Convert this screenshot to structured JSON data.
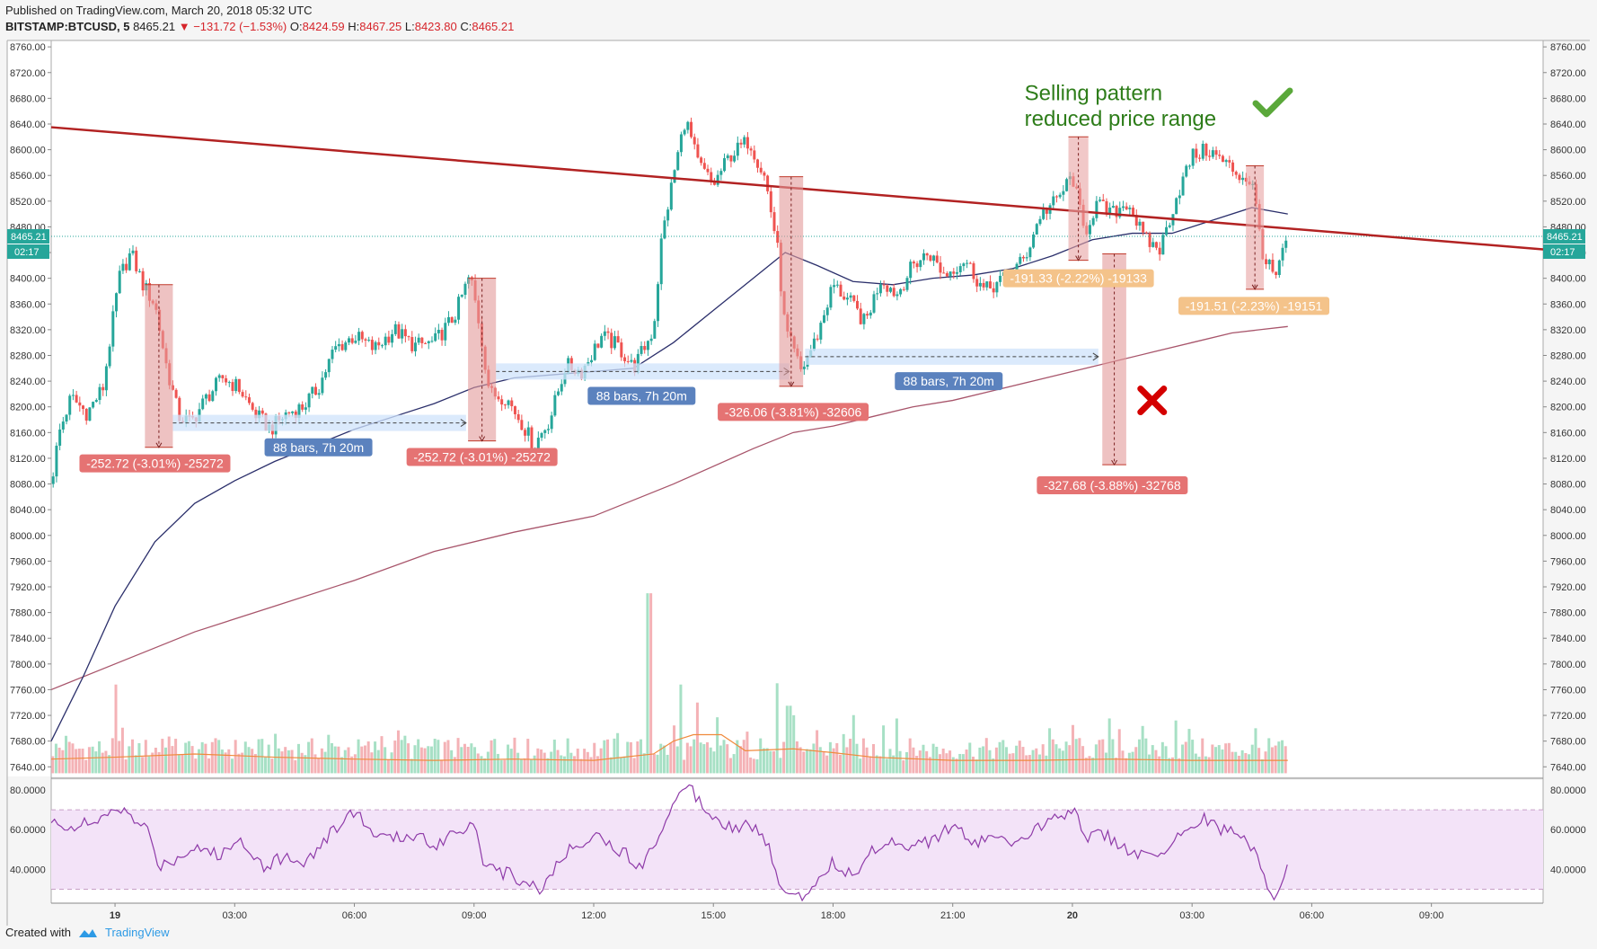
{
  "header": {
    "published": "Published on TradingView.com, March 20, 2018 05:32 UTC",
    "symbol": "BITSTAMP:BTCUSD, 5",
    "last": "8465.21",
    "change": "−131.72 (−1.53%)",
    "o_label": "O:",
    "o_value": "8424.59",
    "h_label": "H:",
    "h_value": "8467.25",
    "l_label": "L:",
    "l_value": "8423.80",
    "c_label": "C:",
    "c_value": "8465.21"
  },
  "footer": {
    "created_with": "Created with",
    "brand": "TradingView"
  },
  "colors": {
    "up": "#26a69a",
    "down": "#ef5350",
    "trendline": "#b22222",
    "ma_fast": "#2b2f6b",
    "ma_slow": "#a8556b",
    "rsi": "#8e3aa8",
    "rsi_band": "#f3e3f8"
  },
  "chart_data": {
    "type": "candlestick",
    "price_axis": {
      "ticks": [
        "8760.00",
        "8720.00",
        "8680.00",
        "8640.00",
        "8600.00",
        "8560.00",
        "8520.00",
        "8480.00",
        "8440.00",
        "8400.00",
        "8360.00",
        "8320.00",
        "8280.00",
        "8240.00",
        "8200.00",
        "8160.00",
        "8120.00",
        "8080.00",
        "8040.00",
        "8000.00",
        "7960.00",
        "7920.00",
        "7880.00",
        "7840.00",
        "7800.00",
        "7760.00",
        "7720.00",
        "7680.00",
        "7640.00"
      ],
      "ylim": [
        7625,
        8770
      ],
      "last_price_label": "8465.21",
      "countdown_label": "02:17"
    },
    "rsi_axis": {
      "ticks": [
        "80.0000",
        "60.0000",
        "40.0000"
      ],
      "ylim": [
        23,
        85
      ],
      "band": [
        30,
        70
      ]
    },
    "time_axis": {
      "ticks": [
        {
          "label": "19",
          "bold": true,
          "h": 0
        },
        {
          "label": "03:00",
          "bold": false,
          "h": 3
        },
        {
          "label": "06:00",
          "bold": false,
          "h": 6
        },
        {
          "label": "09:00",
          "bold": false,
          "h": 9
        },
        {
          "label": "12:00",
          "bold": false,
          "h": 12
        },
        {
          "label": "15:00",
          "bold": false,
          "h": 15
        },
        {
          "label": "18:00",
          "bold": false,
          "h": 18
        },
        {
          "label": "21:00",
          "bold": false,
          "h": 21
        },
        {
          "label": "20",
          "bold": true,
          "h": 24
        },
        {
          "label": "03:00",
          "bold": false,
          "h": 27
        },
        {
          "label": "06:00",
          "bold": false,
          "h": 30
        },
        {
          "label": "09:00",
          "bold": false,
          "h": 33
        }
      ],
      "xlim_hours": [
        -1.6,
        35.8
      ]
    },
    "price_path": [
      [
        -1.6,
        8080
      ],
      [
        -1.4,
        8160
      ],
      [
        -1.1,
        8215
      ],
      [
        -0.7,
        8190
      ],
      [
        -0.3,
        8230
      ],
      [
        0.1,
        8400
      ],
      [
        0.4,
        8440
      ],
      [
        0.7,
        8390
      ],
      [
        1.0,
        8360
      ],
      [
        1.3,
        8260
      ],
      [
        1.6,
        8185
      ],
      [
        1.9,
        8175
      ],
      [
        2.3,
        8215
      ],
      [
        2.7,
        8245
      ],
      [
        3.1,
        8230
      ],
      [
        3.5,
        8190
      ],
      [
        3.9,
        8165
      ],
      [
        4.3,
        8190
      ],
      [
        4.7,
        8200
      ],
      [
        5.1,
        8230
      ],
      [
        5.5,
        8290
      ],
      [
        6.0,
        8310
      ],
      [
        6.5,
        8290
      ],
      [
        7.0,
        8320
      ],
      [
        7.5,
        8295
      ],
      [
        8.0,
        8300
      ],
      [
        8.5,
        8340
      ],
      [
        8.9,
        8405
      ],
      [
        9.1,
        8340
      ],
      [
        9.4,
        8220
      ],
      [
        9.8,
        8215
      ],
      [
        10.2,
        8175
      ],
      [
        10.5,
        8140
      ],
      [
        10.9,
        8180
      ],
      [
        11.3,
        8265
      ],
      [
        11.7,
        8255
      ],
      [
        12.2,
        8310
      ],
      [
        12.6,
        8295
      ],
      [
        13.0,
        8260
      ],
      [
        13.5,
        8320
      ],
      [
        13.7,
        8460
      ],
      [
        14.0,
        8560
      ],
      [
        14.3,
        8650
      ],
      [
        14.6,
        8580
      ],
      [
        15.0,
        8545
      ],
      [
        15.4,
        8590
      ],
      [
        15.9,
        8615
      ],
      [
        16.3,
        8555
      ],
      [
        16.6,
        8450
      ],
      [
        16.8,
        8320
      ],
      [
        17.2,
        8255
      ],
      [
        17.6,
        8310
      ],
      [
        18.0,
        8390
      ],
      [
        18.4,
        8365
      ],
      [
        18.8,
        8330
      ],
      [
        19.2,
        8400
      ],
      [
        19.6,
        8375
      ],
      [
        20.0,
        8420
      ],
      [
        20.4,
        8440
      ],
      [
        20.8,
        8405
      ],
      [
        21.3,
        8430
      ],
      [
        21.8,
        8380
      ],
      [
        22.3,
        8400
      ],
      [
        22.8,
        8430
      ],
      [
        23.2,
        8500
      ],
      [
        23.6,
        8520
      ],
      [
        24.0,
        8560
      ],
      [
        24.3,
        8470
      ],
      [
        24.6,
        8515
      ],
      [
        25.0,
        8500
      ],
      [
        25.4,
        8520
      ],
      [
        25.8,
        8460
      ],
      [
        26.2,
        8445
      ],
      [
        26.6,
        8525
      ],
      [
        27.0,
        8590
      ],
      [
        27.4,
        8600
      ],
      [
        27.8,
        8580
      ],
      [
        28.2,
        8560
      ],
      [
        28.5,
        8550
      ],
      [
        28.8,
        8430
      ],
      [
        29.1,
        8400
      ],
      [
        29.4,
        8465
      ]
    ],
    "ma_fast": [
      [
        -1.6,
        7680
      ],
      [
        -0.8,
        7780
      ],
      [
        0.0,
        7890
      ],
      [
        1.0,
        7990
      ],
      [
        2.0,
        8050
      ],
      [
        3.0,
        8085
      ],
      [
        4.0,
        8115
      ],
      [
        5.0,
        8140
      ],
      [
        6.0,
        8165
      ],
      [
        7.0,
        8185
      ],
      [
        8.0,
        8205
      ],
      [
        9.0,
        8230
      ],
      [
        10.0,
        8245
      ],
      [
        11.0,
        8250
      ],
      [
        12.0,
        8255
      ],
      [
        13.0,
        8260
      ],
      [
        14.0,
        8300
      ],
      [
        15.0,
        8350
      ],
      [
        16.0,
        8400
      ],
      [
        16.8,
        8440
      ],
      [
        17.6,
        8420
      ],
      [
        18.5,
        8395
      ],
      [
        19.5,
        8390
      ],
      [
        20.5,
        8400
      ],
      [
        21.5,
        8405
      ],
      [
        22.5,
        8415
      ],
      [
        23.5,
        8435
      ],
      [
        24.5,
        8460
      ],
      [
        25.5,
        8470
      ],
      [
        26.5,
        8470
      ],
      [
        27.5,
        8490
      ],
      [
        28.5,
        8510
      ],
      [
        29.4,
        8500
      ]
    ],
    "ma_slow": [
      [
        -1.6,
        7760
      ],
      [
        0.0,
        7800
      ],
      [
        2.0,
        7850
      ],
      [
        4.0,
        7890
      ],
      [
        6.0,
        7930
      ],
      [
        8.0,
        7975
      ],
      [
        10.0,
        8005
      ],
      [
        12.0,
        8030
      ],
      [
        14.0,
        8080
      ],
      [
        16.0,
        8135
      ],
      [
        17.0,
        8160
      ],
      [
        18.0,
        8170
      ],
      [
        19.0,
        8185
      ],
      [
        20.0,
        8200
      ],
      [
        21.0,
        8210
      ],
      [
        22.0,
        8225
      ],
      [
        23.0,
        8240
      ],
      [
        24.0,
        8255
      ],
      [
        25.0,
        8270
      ],
      [
        26.0,
        8285
      ],
      [
        27.0,
        8300
      ],
      [
        28.0,
        8315
      ],
      [
        29.4,
        8325
      ]
    ],
    "trendline": {
      "from": [
        -1.6,
        8635
      ],
      "to": [
        35.8,
        8445
      ]
    },
    "volume_avg": [
      [
        -1.6,
        7652
      ],
      [
        0.0,
        7655
      ],
      [
        2.0,
        7660
      ],
      [
        4.0,
        7655
      ],
      [
        6.0,
        7652
      ],
      [
        8.0,
        7650
      ],
      [
        10.0,
        7652
      ],
      [
        12.0,
        7650
      ],
      [
        13.5,
        7660
      ],
      [
        14.0,
        7680
      ],
      [
        14.5,
        7690
      ],
      [
        15.2,
        7690
      ],
      [
        15.8,
        7665
      ],
      [
        17.0,
        7668
      ],
      [
        18.0,
        7662
      ],
      [
        19.0,
        7655
      ],
      [
        21.0,
        7650
      ],
      [
        23.0,
        7650
      ],
      [
        25.0,
        7652
      ],
      [
        27.0,
        7650
      ],
      [
        29.4,
        7650
      ]
    ],
    "volume_spikes": [
      [
        0.0,
        7768
      ],
      [
        13.4,
        7910
      ],
      [
        14.2,
        7768
      ],
      [
        14.6,
        7740
      ],
      [
        16.6,
        7770
      ],
      [
        16.9,
        7735
      ],
      [
        24.0,
        7705
      ],
      [
        28.6,
        7700
      ]
    ],
    "rsi_path": [
      [
        -1.6,
        63
      ],
      [
        -1.0,
        62
      ],
      [
        -0.3,
        64
      ],
      [
        0.0,
        72
      ],
      [
        0.4,
        66
      ],
      [
        0.8,
        60
      ],
      [
        1.1,
        42
      ],
      [
        1.5,
        45
      ],
      [
        2.0,
        52
      ],
      [
        2.6,
        47
      ],
      [
        3.2,
        55
      ],
      [
        3.7,
        42
      ],
      [
        4.2,
        46
      ],
      [
        4.8,
        44
      ],
      [
        5.5,
        60
      ],
      [
        6.0,
        70
      ],
      [
        6.5,
        57
      ],
      [
        7.0,
        55
      ],
      [
        7.5,
        58
      ],
      [
        8.0,
        52
      ],
      [
        8.5,
        59
      ],
      [
        9.0,
        64
      ],
      [
        9.3,
        40
      ],
      [
        9.8,
        38
      ],
      [
        10.3,
        34
      ],
      [
        10.7,
        30
      ],
      [
        11.0,
        40
      ],
      [
        11.5,
        52
      ],
      [
        12.0,
        58
      ],
      [
        12.6,
        50
      ],
      [
        13.2,
        42
      ],
      [
        13.6,
        55
      ],
      [
        14.0,
        76
      ],
      [
        14.4,
        82
      ],
      [
        14.7,
        73
      ],
      [
        15.0,
        68
      ],
      [
        15.4,
        62
      ],
      [
        16.0,
        62
      ],
      [
        16.4,
        50
      ],
      [
        16.6,
        36
      ],
      [
        16.9,
        28
      ],
      [
        17.2,
        26
      ],
      [
        17.6,
        35
      ],
      [
        18.0,
        44
      ],
      [
        18.5,
        36
      ],
      [
        19.0,
        50
      ],
      [
        19.5,
        55
      ],
      [
        20.0,
        52
      ],
      [
        20.5,
        55
      ],
      [
        21.0,
        62
      ],
      [
        21.5,
        52
      ],
      [
        22.0,
        58
      ],
      [
        22.5,
        50
      ],
      [
        23.0,
        58
      ],
      [
        23.4,
        66
      ],
      [
        23.8,
        68
      ],
      [
        24.0,
        72
      ],
      [
        24.4,
        55
      ],
      [
        24.8,
        58
      ],
      [
        25.2,
        52
      ],
      [
        25.6,
        48
      ],
      [
        26.0,
        45
      ],
      [
        26.4,
        50
      ],
      [
        26.8,
        60
      ],
      [
        27.2,
        66
      ],
      [
        27.6,
        62
      ],
      [
        28.0,
        58
      ],
      [
        28.4,
        55
      ],
      [
        28.7,
        44
      ],
      [
        28.9,
        30
      ],
      [
        29.1,
        24
      ],
      [
        29.4,
        44
      ]
    ],
    "measures": [
      {
        "label": "-252.72 (-3.01%) -25272",
        "x0": 0.75,
        "x1": 1.45,
        "top": 8390,
        "bottom": 8137,
        "lx": 1.0,
        "lprice": 8112,
        "color": "red"
      },
      {
        "label": "-252.72 (-3.01%) -25272",
        "x0": 8.85,
        "x1": 9.55,
        "top": 8400,
        "bottom": 8147,
        "lx": 9.2,
        "lprice": 8122,
        "color": "red"
      },
      {
        "label": "-326.06 (-3.81%) -32606",
        "x0": 16.65,
        "x1": 17.25,
        "top": 8558,
        "bottom": 8232,
        "lx": 17.0,
        "lprice": 8192,
        "color": "red"
      },
      {
        "label": "-327.68 (-3.88%) -32768",
        "x0": 24.75,
        "x1": 25.35,
        "top": 8438,
        "bottom": 8110,
        "lx": 25.0,
        "lprice": 8078,
        "color": "red"
      },
      {
        "label": "-191.33 (-2.22%) -19133",
        "x0": 23.9,
        "x1": 24.4,
        "top": 8620,
        "bottom": 8428,
        "lx": 24.15,
        "lprice": 8400,
        "color": "orange"
      },
      {
        "label": "-191.51 (-2.23%) -19151",
        "x0": 28.35,
        "x1": 28.8,
        "top": 8575,
        "bottom": 8383,
        "lx": 28.55,
        "lprice": 8357,
        "color": "orange"
      }
    ],
    "ranges": [
      {
        "label": "88 bars, 7h 20m",
        "x0": 1.45,
        "x1": 8.8,
        "price": 8175,
        "lx": 5.1,
        "lprice": 8137
      },
      {
        "label": "88 bars, 7h 20m",
        "x0": 9.55,
        "x1": 16.9,
        "price": 8255,
        "lx": 13.2,
        "lprice": 8217
      },
      {
        "label": "88 bars, 7h 20m",
        "x0": 17.3,
        "x1": 24.65,
        "price": 8278,
        "lx": 20.9,
        "lprice": 8240
      }
    ],
    "annotations": {
      "line1": "Selling pattern",
      "line2": "reduced price range",
      "line1_at": [
        22.8,
        8677
      ],
      "line2_at": [
        22.8,
        8637
      ],
      "check_at": [
        29.0,
        8675
      ],
      "cross_at": [
        26.0,
        8210
      ]
    }
  }
}
